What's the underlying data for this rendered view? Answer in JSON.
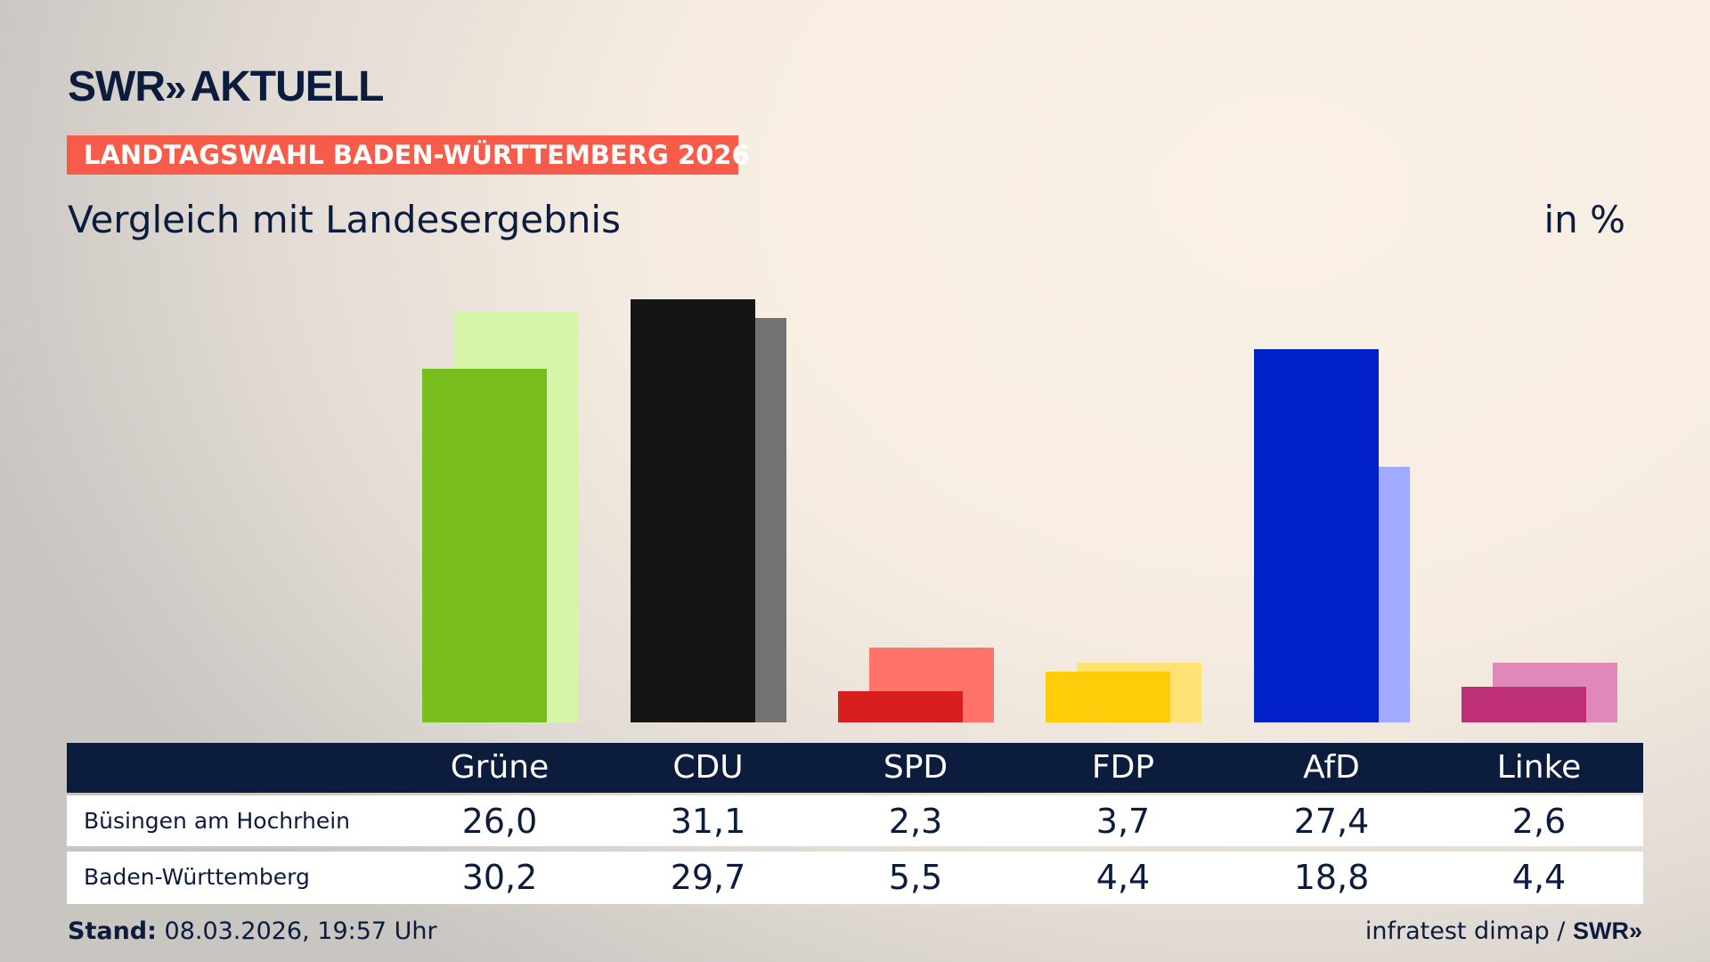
{
  "brand": {
    "logo_text": "SWR",
    "logo_product": "AKTUELL"
  },
  "banner": "LANDTAGSWAHL BADEN-WÜRTTEMBERG 2026",
  "subtitle": "Vergleich mit Landesergebnis",
  "unit": "in %",
  "chart_data": {
    "type": "bar",
    "categories": [
      "Grüne",
      "CDU",
      "SPD",
      "FDP",
      "AfD",
      "Linke"
    ],
    "series": [
      {
        "name": "Büsingen am Hochrhein",
        "values": [
          26.0,
          31.1,
          2.3,
          3.7,
          27.4,
          2.6
        ],
        "display": [
          "26,0",
          "31,1",
          "2,3",
          "3,7",
          "27,4",
          "2,6"
        ]
      },
      {
        "name": "Baden-Württemberg",
        "values": [
          30.2,
          29.7,
          5.5,
          4.4,
          18.8,
          4.4
        ],
        "display": [
          "30,2",
          "29,7",
          "5,5",
          "4,4",
          "18,8",
          "4,4"
        ]
      }
    ],
    "colors": {
      "primary": [
        "#78be1e",
        "#151515",
        "#d81e1e",
        "#ffcc0a",
        "#0020c8",
        "#be3075"
      ],
      "secondary": [
        "#d6f5a8",
        "#727272",
        "#ff736b",
        "#ffe273",
        "#a0aaff",
        "#e088b8"
      ]
    },
    "ylim": [
      0,
      31.1
    ],
    "grid": false,
    "legend": "table-below"
  },
  "footer": {
    "stand_label": "Stand:",
    "stand_value": "08.03.2026, 19:57 Uhr",
    "source": "infratest dimap /",
    "source_brand": "SWR"
  }
}
